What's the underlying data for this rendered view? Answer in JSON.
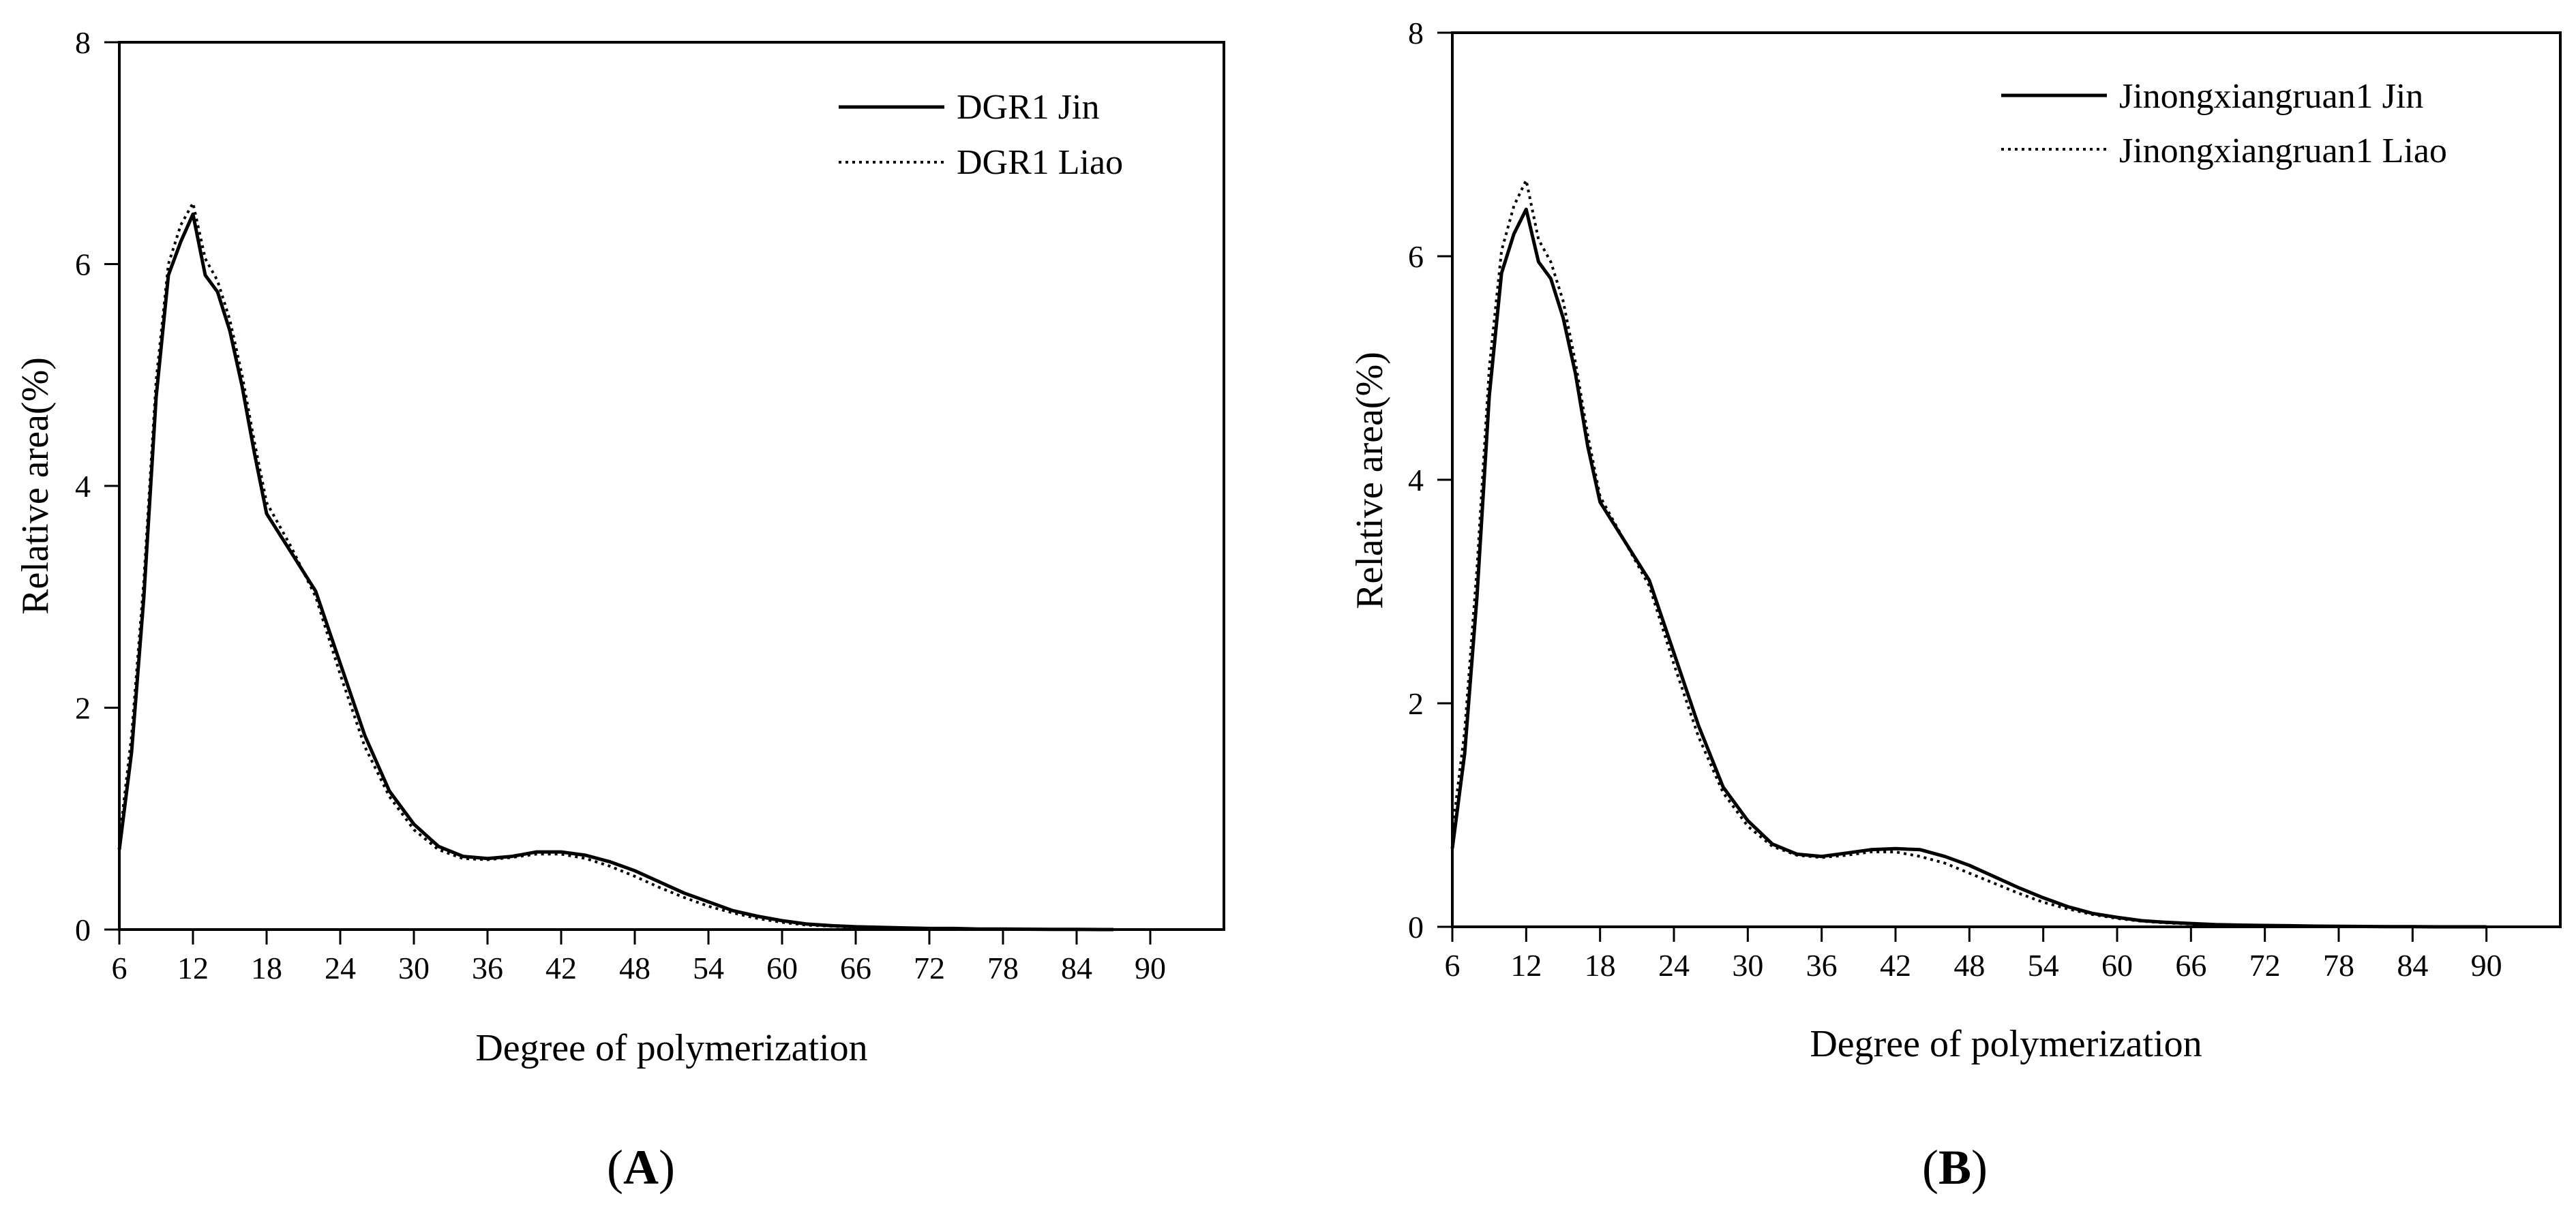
{
  "chart_data": [
    {
      "type": "line",
      "panel_label": {
        "open": "(",
        "letter": "A",
        "close": ")"
      },
      "xlabel": "Degree of polymerization",
      "ylabel": "Relative area(%)",
      "xlim": [
        6,
        96
      ],
      "ylim": [
        0,
        8
      ],
      "xticks": [
        6,
        12,
        18,
        24,
        30,
        36,
        42,
        48,
        54,
        60,
        66,
        72,
        78,
        84,
        90
      ],
      "yticks": [
        0,
        2,
        4,
        6,
        8
      ],
      "legend_position": "top-right",
      "grid": false,
      "series": [
        {
          "name": "DGR1 Jin",
          "style": "solid",
          "color": "#000000",
          "x": [
            6,
            7,
            8,
            9,
            10,
            11,
            12,
            13,
            14,
            15,
            16,
            17,
            18,
            20,
            22,
            24,
            26,
            28,
            30,
            32,
            34,
            36,
            38,
            40,
            42,
            44,
            46,
            48,
            50,
            52,
            54,
            56,
            58,
            60,
            62,
            64,
            66,
            68,
            70,
            72,
            74,
            76,
            78,
            80,
            82,
            84,
            86,
            87
          ],
          "values": [
            0.72,
            1.6,
            3.0,
            4.8,
            5.9,
            6.2,
            6.45,
            5.9,
            5.75,
            5.4,
            4.9,
            4.3,
            3.75,
            3.4,
            3.05,
            2.4,
            1.75,
            1.25,
            0.95,
            0.75,
            0.66,
            0.64,
            0.66,
            0.7,
            0.7,
            0.67,
            0.61,
            0.53,
            0.43,
            0.33,
            0.25,
            0.17,
            0.12,
            0.08,
            0.05,
            0.035,
            0.025,
            0.02,
            0.015,
            0.01,
            0.01,
            0.005,
            0.005,
            0.003,
            0.002,
            0.001,
            0.0,
            0.0
          ]
        },
        {
          "name": "DGR1 Liao",
          "style": "dotted",
          "color": "#000000",
          "x": [
            6,
            7,
            8,
            9,
            10,
            11,
            12,
            13,
            14,
            15,
            16,
            17,
            18,
            20,
            22,
            24,
            26,
            28,
            30,
            32,
            34,
            36,
            38,
            40,
            42,
            44,
            46,
            48,
            50,
            52,
            54,
            56,
            58,
            60,
            62,
            64,
            66,
            68,
            70,
            72,
            74,
            76,
            78,
            80,
            82,
            84,
            86,
            87
          ],
          "values": [
            0.8,
            1.75,
            3.15,
            4.95,
            6.0,
            6.35,
            6.55,
            6.05,
            5.85,
            5.5,
            5.0,
            4.4,
            3.85,
            3.45,
            3.0,
            2.3,
            1.65,
            1.2,
            0.9,
            0.72,
            0.64,
            0.63,
            0.65,
            0.68,
            0.68,
            0.64,
            0.57,
            0.48,
            0.38,
            0.29,
            0.21,
            0.15,
            0.1,
            0.065,
            0.04,
            0.03,
            0.02,
            0.015,
            0.01,
            0.008,
            0.006,
            0.004,
            0.003,
            0.002,
            0.001,
            0.0,
            0.0,
            0.0
          ]
        }
      ]
    },
    {
      "type": "line",
      "panel_label": {
        "open": "(",
        "letter": "B",
        "close": ")"
      },
      "xlabel": "Degree of polymerization",
      "ylabel": "Relative area(%)",
      "xlim": [
        6,
        96
      ],
      "ylim": [
        0,
        8
      ],
      "xticks": [
        6,
        12,
        18,
        24,
        30,
        36,
        42,
        48,
        54,
        60,
        66,
        72,
        78,
        84,
        90
      ],
      "yticks": [
        0,
        2,
        4,
        6,
        8
      ],
      "legend_position": "top-right",
      "grid": false,
      "series": [
        {
          "name": "Jinongxiangruan1 Jin",
          "style": "solid",
          "color": "#000000",
          "x": [
            6,
            7,
            8,
            9,
            10,
            11,
            12,
            13,
            14,
            15,
            16,
            17,
            18,
            20,
            22,
            24,
            26,
            28,
            30,
            32,
            34,
            36,
            38,
            40,
            42,
            44,
            46,
            48,
            50,
            52,
            54,
            56,
            58,
            60,
            62,
            64,
            66,
            68,
            70,
            72,
            74,
            76,
            78,
            80,
            82,
            84,
            86,
            88,
            90
          ],
          "values": [
            0.7,
            1.55,
            2.95,
            4.75,
            5.85,
            6.2,
            6.42,
            5.95,
            5.8,
            5.45,
            4.95,
            4.3,
            3.8,
            3.45,
            3.1,
            2.45,
            1.8,
            1.25,
            0.95,
            0.74,
            0.65,
            0.63,
            0.66,
            0.69,
            0.7,
            0.69,
            0.63,
            0.55,
            0.45,
            0.35,
            0.26,
            0.18,
            0.12,
            0.085,
            0.055,
            0.04,
            0.03,
            0.02,
            0.015,
            0.012,
            0.01,
            0.006,
            0.005,
            0.003,
            0.002,
            0.001,
            0.0,
            0.0,
            0.0
          ]
        },
        {
          "name": "Jinongxiangruan1 Liao",
          "style": "dotted",
          "color": "#000000",
          "x": [
            6,
            7,
            8,
            9,
            10,
            11,
            12,
            13,
            14,
            15,
            16,
            17,
            18,
            20,
            22,
            24,
            26,
            28,
            30,
            32,
            34,
            36,
            38,
            40,
            42,
            44,
            46,
            48,
            50,
            52,
            54,
            56,
            58,
            60,
            62,
            64,
            66,
            68,
            70,
            72,
            74,
            76,
            78,
            80,
            82,
            84,
            86,
            88,
            90
          ],
          "values": [
            0.85,
            1.75,
            3.2,
            5.0,
            6.05,
            6.45,
            6.68,
            6.15,
            5.95,
            5.6,
            5.05,
            4.4,
            3.85,
            3.45,
            3.05,
            2.35,
            1.7,
            1.2,
            0.9,
            0.72,
            0.64,
            0.62,
            0.64,
            0.67,
            0.67,
            0.63,
            0.57,
            0.48,
            0.39,
            0.3,
            0.22,
            0.16,
            0.11,
            0.075,
            0.05,
            0.035,
            0.025,
            0.018,
            0.012,
            0.009,
            0.007,
            0.005,
            0.004,
            0.003,
            0.002,
            0.001,
            0.0,
            0.0,
            0.0
          ]
        }
      ]
    }
  ]
}
